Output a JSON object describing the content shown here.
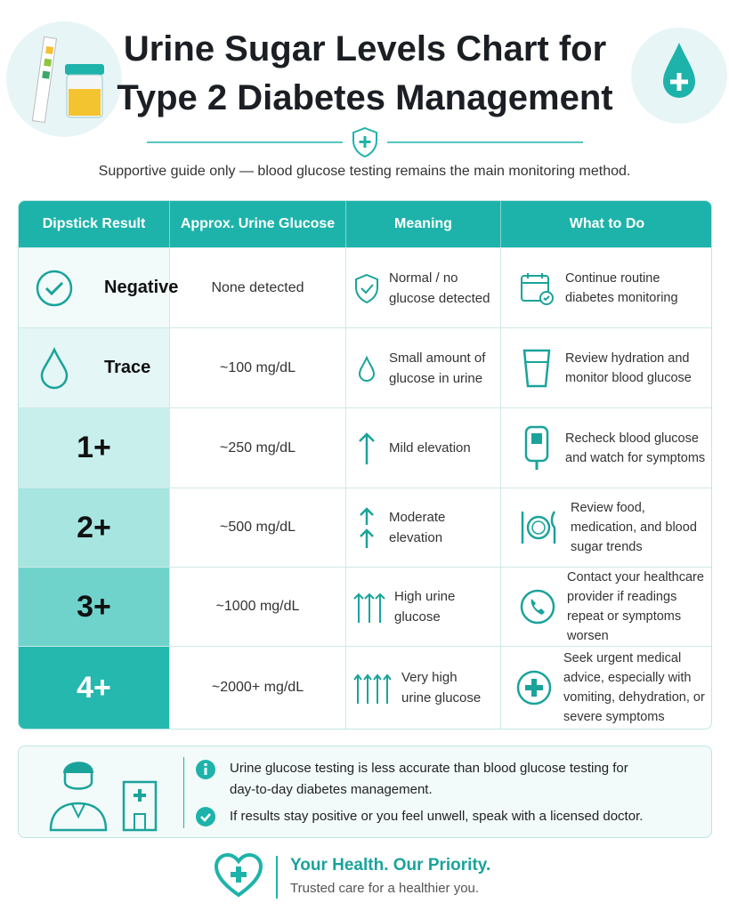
{
  "header": {
    "title": "Urine Sugar Levels Chart for Type 2 Diabetes Management",
    "subtitle": "Supportive guide only — blood glucose testing remains the main monitoring method."
  },
  "table": {
    "columns": [
      "Dipstick Result",
      "Approx. Urine Glucose",
      "Meaning",
      "What to Do"
    ],
    "rows": [
      [
        "Negative",
        "None detected",
        "Normal / no glucose detected",
        "Continue routine diabetes monitoring"
      ],
      [
        "Trace",
        "~100 mg/dL",
        "Small amount of glucose in urine",
        "Review hydration and monitor blood glucose"
      ],
      [
        "1+",
        "~250 mg/dL",
        "Mild elevation",
        "Recheck blood glucose and watch for symptoms"
      ],
      [
        "2+",
        "~500 mg/dL",
        "Moderate elevation",
        "Review food, medication, and blood sugar trends"
      ],
      [
        "3+",
        "~1000 mg/dL",
        "High urine glucose",
        "Contact your healthcare provider if readings repeat or symptoms worsen"
      ],
      [
        "4+",
        "~2000+ mg/dL",
        "Very high urine glucose",
        "Seek urgent medical advice, especially with vomiting, dehydration, or severe symptoms"
      ]
    ]
  },
  "notes": [
    "Urine glucose testing is less accurate than blood glucose testing for day-to-day diabetes management.",
    "If results stay positive or you feel unwell, speak with a licensed doctor."
  ],
  "footer": {
    "tagline": "Your Health. Our Priority.",
    "subtext": "Trusted care for a healthier you."
  }
}
